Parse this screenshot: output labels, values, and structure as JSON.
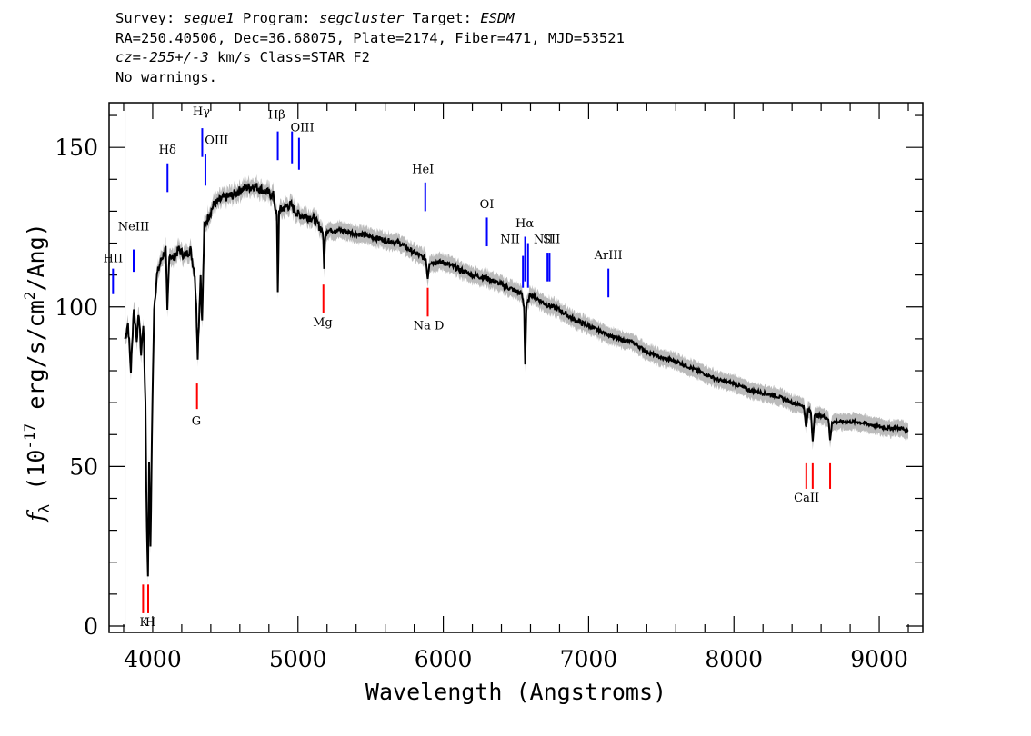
{
  "header": {
    "line1": {
      "survey_label": "Survey: ",
      "survey": "segue1",
      "program_label": " Program: ",
      "program": "segcluster",
      "target_label": " Target: ",
      "target": "ESDM"
    },
    "line2": "RA=250.40506, Dec=36.68075, Plate=2174, Fiber=471, MJD=53521",
    "line3": {
      "cz_label": "cz=",
      "cz": "-255+/-3",
      "rest": " km/s Class=STAR F2"
    },
    "line4": "No warnings."
  },
  "chart_data": {
    "type": "line",
    "xlabel": "Wavelength (Angstroms)",
    "ylabel": "f_λ (10^-17 erg/s/cm^2/Ang)",
    "xlim": [
      3700,
      9300
    ],
    "ylim": [
      -2,
      164
    ],
    "xticks": [
      4000,
      5000,
      6000,
      7000,
      8000,
      9000
    ],
    "yticks": [
      0,
      50,
      100,
      150
    ],
    "series": [
      {
        "color": "#000000",
        "x": [
          3810,
          3830,
          3850,
          3870,
          3890,
          3905,
          3920,
          3935,
          3950,
          3960,
          3968,
          3975,
          3985,
          3995,
          4010,
          4030,
          4060,
          4090,
          4101,
          4115,
          4140,
          4180,
          4220,
          4260,
          4290,
          4300,
          4310,
          4330,
          4340,
          4355,
          4380,
          4420,
          4480,
          4550,
          4620,
          4700,
          4780,
          4830,
          4855,
          4861,
          4870,
          4900,
          4950,
          5000,
          5100,
          5170,
          5180,
          5190,
          5300,
          5400,
          5500,
          5600,
          5700,
          5800,
          5880,
          5893,
          5905,
          6000,
          6100,
          6200,
          6300,
          6400,
          6500,
          6540,
          6556,
          6563,
          6572,
          6600,
          6700,
          6800,
          6900,
          7000,
          7100,
          7200,
          7300,
          7400,
          7500,
          7600,
          7700,
          7800,
          7900,
          8000,
          8100,
          8200,
          8300,
          8400,
          8480,
          8498,
          8510,
          8530,
          8542,
          8555,
          8600,
          8650,
          8662,
          8675,
          8750,
          8850,
          8950,
          9050,
          9150,
          9200
        ],
        "y": [
          90,
          95,
          80,
          100,
          90,
          98,
          85,
          95,
          70,
          30,
          16,
          50,
          25,
          60,
          100,
          110,
          115,
          118,
          98,
          117,
          115,
          118,
          116,
          118,
          110,
          100,
          85,
          110,
          95,
          125,
          128,
          132,
          134,
          135,
          137,
          138,
          136,
          135,
          128,
          104,
          130,
          131,
          132,
          129,
          128,
          124,
          113,
          124,
          124,
          123,
          122,
          121,
          120,
          117,
          115,
          109,
          114,
          114,
          112,
          110,
          109,
          107,
          105,
          104,
          100,
          82,
          100,
          104,
          101,
          99,
          96,
          94,
          92,
          90,
          89,
          86,
          84,
          83,
          81,
          79,
          77,
          76,
          74,
          73,
          72,
          70,
          69,
          62,
          68,
          67,
          58,
          66,
          66,
          65,
          58,
          64,
          64,
          64,
          63,
          62,
          62,
          61
        ]
      }
    ],
    "emission_lines": [
      "HII",
      "NeIII",
      "Hδ",
      "Hγ",
      "OIII",
      "Hβ",
      "OIII",
      "HeI",
      "OI",
      "NII",
      "Hα",
      "NII",
      "SII",
      "ArIII"
    ],
    "absorption_lines": [
      "K",
      "H",
      "G",
      "Mg",
      "Na D",
      "CaII"
    ],
    "emission_color": "#0000ff",
    "absorption_color": "#ff0000",
    "error_band_color": "#bbbbbb"
  }
}
